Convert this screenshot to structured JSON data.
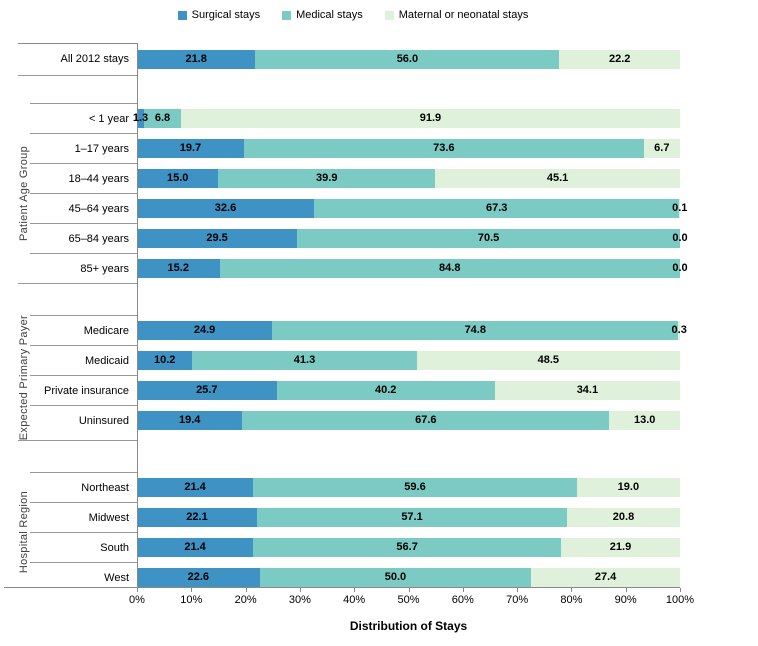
{
  "chart_data": {
    "type": "bar",
    "orientation": "horizontal-stacked",
    "title": "",
    "xlabel": "Distribution of Stays",
    "ylabel": "",
    "xlim": [
      0,
      100
    ],
    "x_ticks": [
      "0%",
      "10%",
      "20%",
      "30%",
      "40%",
      "50%",
      "60%",
      "70%",
      "80%",
      "90%",
      "100%"
    ],
    "grid": false,
    "legend_position": "top-center",
    "series": [
      "Surgical stays",
      "Medical stays",
      "Maternal or neonatal stays"
    ],
    "colors": [
      "#3E92C4",
      "#7BCAC3",
      "#DFF1DA"
    ],
    "segment_names": [
      "surgical",
      "medical",
      "maternal"
    ],
    "groups": [
      {
        "label": "",
        "categories": [
          {
            "name": "All 2012 stays",
            "values": [
              21.8,
              56.0,
              22.2
            ]
          }
        ]
      },
      {
        "label": "Patient Age Group",
        "categories": [
          {
            "name": "< 1 year",
            "values": [
              1.3,
              6.8,
              91.9
            ]
          },
          {
            "name": "1–17 years",
            "values": [
              19.7,
              73.6,
              6.7
            ]
          },
          {
            "name": "18–44 years",
            "values": [
              15.0,
              39.9,
              45.1
            ]
          },
          {
            "name": "45–64 years",
            "values": [
              32.6,
              67.3,
              0.1
            ]
          },
          {
            "name": "65–84 years",
            "values": [
              29.5,
              70.5,
              0.0
            ]
          },
          {
            "name": "85+ years",
            "values": [
              15.2,
              84.8,
              0.0
            ]
          }
        ]
      },
      {
        "label": "Expected Primary Payer",
        "categories": [
          {
            "name": "Medicare",
            "values": [
              24.9,
              74.8,
              0.3
            ]
          },
          {
            "name": "Medicaid",
            "values": [
              10.2,
              41.3,
              48.5
            ]
          },
          {
            "name": "Private insurance",
            "values": [
              25.7,
              40.2,
              34.1
            ]
          },
          {
            "name": "Uninsured",
            "values": [
              19.4,
              67.6,
              13.0
            ]
          }
        ]
      },
      {
        "label": "Hospital Region",
        "categories": [
          {
            "name": "Northeast",
            "values": [
              21.4,
              59.6,
              19.0
            ]
          },
          {
            "name": "Midwest",
            "values": [
              22.1,
              57.1,
              20.8
            ]
          },
          {
            "name": "South",
            "values": [
              21.4,
              56.7,
              21.9
            ]
          },
          {
            "name": "West",
            "values": [
              22.6,
              50.0,
              27.4
            ]
          }
        ]
      }
    ]
  }
}
